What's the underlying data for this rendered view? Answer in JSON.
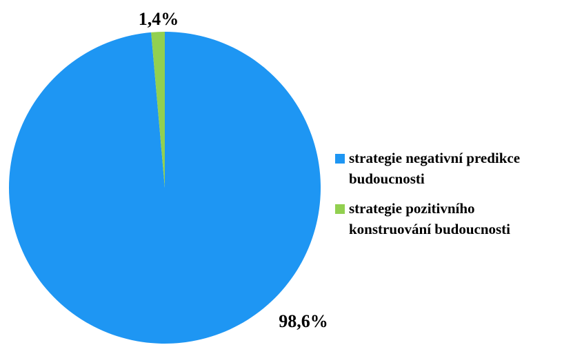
{
  "chart_data": {
    "type": "pie",
    "categories": [
      "strategie negativní predikce budoucnosti",
      "strategie pozitivního konstruování budoucnosti"
    ],
    "values": [
      98.6,
      1.4
    ],
    "value_labels": [
      "98,6%",
      "1,4%"
    ],
    "colors": [
      "#1e96f3",
      "#92d050"
    ],
    "legend": "right"
  }
}
